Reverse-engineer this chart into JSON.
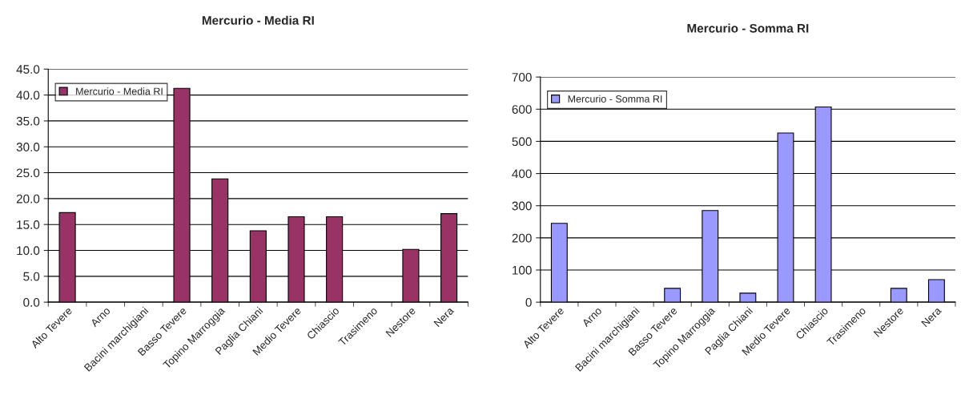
{
  "chart_data": [
    {
      "type": "bar",
      "title": "Mercurio - Media RI",
      "categories": [
        "Alto Tevere",
        "Arno",
        "Bacini marchigiani",
        "Basso Tevere",
        "Topino Marroggia",
        "Paglia Chiani",
        "Medio Tevere",
        "Chiascio",
        "Trasimeno",
        "Nestore",
        "Nera"
      ],
      "series": [
        {
          "name": "Mercurio - Media RI",
          "color": "#993366",
          "values": [
            17.3,
            null,
            null,
            41.3,
            23.8,
            13.8,
            16.5,
            16.5,
            null,
            10.2,
            17.1
          ]
        }
      ],
      "ylim": [
        0,
        45
      ],
      "yticks": [
        {
          "value": 0,
          "label": "0.0"
        },
        {
          "value": 5,
          "label": "5.0"
        },
        {
          "value": 10,
          "label": "10.0"
        },
        {
          "value": 15,
          "label": "15.0"
        },
        {
          "value": 20,
          "label": "20.0"
        },
        {
          "value": 25,
          "label": "25.0"
        },
        {
          "value": 30,
          "label": "30.0"
        },
        {
          "value": 35,
          "label": "35.0"
        },
        {
          "value": 40,
          "label": "40.0"
        },
        {
          "value": 45,
          "label": "45.0"
        }
      ],
      "grid": "y",
      "legend": "top left"
    },
    {
      "type": "bar",
      "title": "Mercurio - Somma RI",
      "categories": [
        "Alto Tevere",
        "Arno",
        "Bacini marchigiani",
        "Basso Tevere",
        "Topino Marroggia",
        "Paglia Chiani",
        "Medio Tevere",
        "Chiascio",
        "Trasimeno",
        "Nestore",
        "Nera"
      ],
      "series": [
        {
          "name": "Mercurio - Somma RI",
          "color": "#9999ff",
          "values": [
            245,
            null,
            null,
            43,
            285,
            28,
            526,
            607,
            null,
            43,
            70
          ]
        }
      ],
      "ylim": [
        0,
        700
      ],
      "yticks": [
        0,
        100,
        200,
        300,
        400,
        500,
        600,
        700
      ],
      "grid": "y",
      "legend": "top left"
    }
  ]
}
